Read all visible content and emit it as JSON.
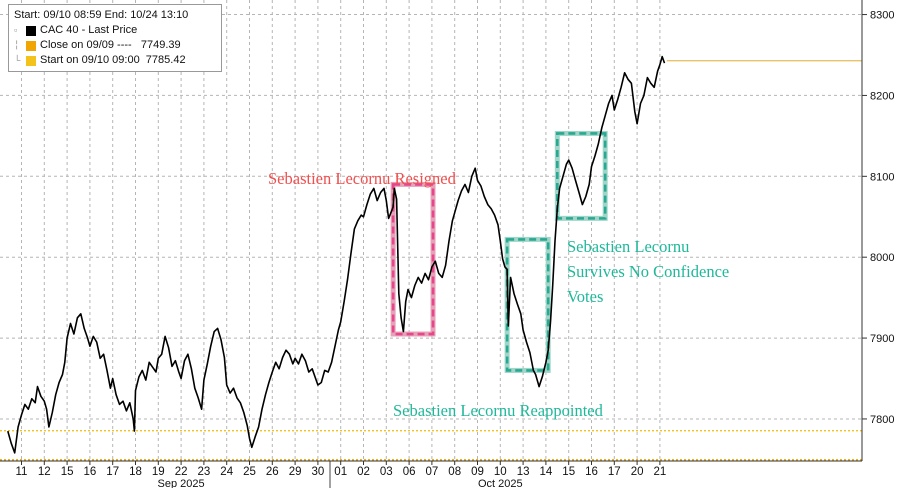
{
  "legend": {
    "header": "Start: 09/10 08:59 End: 10/24 13:10",
    "items": [
      {
        "label": "CAC 40 - Last Price",
        "color": "#000000"
      },
      {
        "label": "Close on 09/09 ----   7749.39",
        "color": "#f0a500"
      },
      {
        "label": "Start on 09/10 09:00  7785.42",
        "color": "#f3c21b"
      }
    ]
  },
  "annotations": {
    "resigned": {
      "text": "Sebastien Lecornu Resigned",
      "color": "#f0504f"
    },
    "reappointed": {
      "text": "Sebastien Lecornu Reappointed",
      "color": "#1fb89a"
    },
    "survives": {
      "lines": [
        "Sebastien Lecornu",
        "Survives No Confidence",
        "Votes"
      ],
      "color": "#1fb89a"
    }
  },
  "chart_data": {
    "type": "line",
    "title": "",
    "xlabel": "",
    "ylabel": "",
    "ylim": [
      7748,
      8318
    ],
    "yticks": [
      7800,
      7900,
      8000,
      8100,
      8200,
      8300
    ],
    "grid": true,
    "x_ticks": [
      "11",
      "12",
      "15",
      "16",
      "17",
      "18",
      "19",
      "22",
      "23",
      "24",
      "25",
      "26",
      "29",
      "30",
      "01",
      "02",
      "03",
      "06",
      "07",
      "08",
      "09",
      "10",
      "13",
      "14",
      "15",
      "16",
      "17",
      "20",
      "21"
    ],
    "x_month_labels": [
      {
        "label": "Sep 2025",
        "at_tick": 7
      },
      {
        "label": "Oct 2025",
        "at_tick": 21
      }
    ],
    "series": [
      {
        "name": "CAC 40 - Last Price",
        "color": "#000000",
        "points": [
          [
            -0.6,
            7785
          ],
          [
            -0.45,
            7770
          ],
          [
            -0.3,
            7758
          ],
          [
            -0.15,
            7790
          ],
          [
            0.0,
            7805
          ],
          [
            0.15,
            7818
          ],
          [
            0.3,
            7812
          ],
          [
            0.45,
            7825
          ],
          [
            0.6,
            7820
          ],
          [
            0.7,
            7840
          ],
          [
            0.85,
            7828
          ],
          [
            1.0,
            7822
          ],
          [
            1.1,
            7812
          ],
          [
            1.2,
            7790
          ],
          [
            1.35,
            7808
          ],
          [
            1.5,
            7830
          ],
          [
            1.65,
            7845
          ],
          [
            1.8,
            7855
          ],
          [
            1.9,
            7870
          ],
          [
            2.0,
            7900
          ],
          [
            2.15,
            7918
          ],
          [
            2.3,
            7905
          ],
          [
            2.45,
            7925
          ],
          [
            2.6,
            7930
          ],
          [
            2.75,
            7912
          ],
          [
            2.9,
            7900
          ],
          [
            3.0,
            7890
          ],
          [
            3.15,
            7902
          ],
          [
            3.3,
            7895
          ],
          [
            3.45,
            7875
          ],
          [
            3.6,
            7880
          ],
          [
            3.75,
            7860
          ],
          [
            3.9,
            7838
          ],
          [
            4.0,
            7850
          ],
          [
            4.15,
            7830
          ],
          [
            4.3,
            7818
          ],
          [
            4.45,
            7822
          ],
          [
            4.6,
            7810
          ],
          [
            4.75,
            7820
          ],
          [
            4.9,
            7800
          ],
          [
            4.95,
            7785
          ],
          [
            5.0,
            7835
          ],
          [
            5.15,
            7852
          ],
          [
            5.3,
            7860
          ],
          [
            5.45,
            7848
          ],
          [
            5.6,
            7870
          ],
          [
            5.75,
            7864
          ],
          [
            5.9,
            7858
          ],
          [
            6.0,
            7875
          ],
          [
            6.15,
            7880
          ],
          [
            6.3,
            7902
          ],
          [
            6.45,
            7888
          ],
          [
            6.6,
            7865
          ],
          [
            6.75,
            7872
          ],
          [
            6.9,
            7858
          ],
          [
            7.0,
            7850
          ],
          [
            7.15,
            7872
          ],
          [
            7.3,
            7880
          ],
          [
            7.45,
            7862
          ],
          [
            7.6,
            7838
          ],
          [
            7.75,
            7826
          ],
          [
            7.9,
            7812
          ],
          [
            8.0,
            7848
          ],
          [
            8.15,
            7868
          ],
          [
            8.3,
            7890
          ],
          [
            8.45,
            7908
          ],
          [
            8.6,
            7912
          ],
          [
            8.75,
            7898
          ],
          [
            8.9,
            7876
          ],
          [
            9.0,
            7842
          ],
          [
            9.15,
            7832
          ],
          [
            9.3,
            7838
          ],
          [
            9.45,
            7826
          ],
          [
            9.6,
            7820
          ],
          [
            9.75,
            7808
          ],
          [
            9.9,
            7792
          ],
          [
            10.0,
            7776
          ],
          [
            10.1,
            7765
          ],
          [
            10.25,
            7778
          ],
          [
            10.4,
            7790
          ],
          [
            10.55,
            7812
          ],
          [
            10.7,
            7830
          ],
          [
            10.85,
            7845
          ],
          [
            11.0,
            7858
          ],
          [
            11.15,
            7870
          ],
          [
            11.3,
            7862
          ],
          [
            11.45,
            7876
          ],
          [
            11.6,
            7885
          ],
          [
            11.75,
            7880
          ],
          [
            11.9,
            7868
          ],
          [
            12.0,
            7875
          ],
          [
            12.15,
            7868
          ],
          [
            12.3,
            7880
          ],
          [
            12.45,
            7872
          ],
          [
            12.6,
            7858
          ],
          [
            12.75,
            7862
          ],
          [
            12.9,
            7850
          ],
          [
            13.0,
            7842
          ],
          [
            13.15,
            7845
          ],
          [
            13.3,
            7860
          ],
          [
            13.45,
            7858
          ],
          [
            13.6,
            7870
          ],
          [
            13.75,
            7890
          ],
          [
            13.9,
            7910
          ],
          [
            14.0,
            7920
          ],
          [
            14.15,
            7945
          ],
          [
            14.3,
            7972
          ],
          [
            14.45,
            8005
          ],
          [
            14.6,
            8035
          ],
          [
            14.75,
            8045
          ],
          [
            14.9,
            8052
          ],
          [
            15.0,
            8050
          ],
          [
            15.15,
            8065
          ],
          [
            15.3,
            8078
          ],
          [
            15.45,
            8085
          ],
          [
            15.6,
            8070
          ],
          [
            15.75,
            8080
          ],
          [
            15.9,
            8085
          ],
          [
            16.0,
            8070
          ],
          [
            16.1,
            8048
          ],
          [
            16.2,
            8055
          ],
          [
            16.3,
            8062
          ],
          [
            16.35,
            8085
          ],
          [
            16.45,
            8072
          ],
          [
            16.55,
            7955
          ],
          [
            16.65,
            7925
          ],
          [
            16.75,
            7908
          ],
          [
            16.85,
            7945
          ],
          [
            16.95,
            7960
          ],
          [
            17.1,
            7950
          ],
          [
            17.25,
            7965
          ],
          [
            17.4,
            7975
          ],
          [
            17.55,
            7968
          ],
          [
            17.7,
            7980
          ],
          [
            17.85,
            7972
          ],
          [
            18.0,
            7988
          ],
          [
            18.15,
            7995
          ],
          [
            18.3,
            7980
          ],
          [
            18.45,
            7975
          ],
          [
            18.6,
            7990
          ],
          [
            18.75,
            8020
          ],
          [
            18.9,
            8045
          ],
          [
            19.0,
            8055
          ],
          [
            19.15,
            8070
          ],
          [
            19.3,
            8082
          ],
          [
            19.45,
            8090
          ],
          [
            19.6,
            8080
          ],
          [
            19.75,
            8100
          ],
          [
            19.9,
            8110
          ],
          [
            20.0,
            8095
          ],
          [
            20.15,
            8088
          ],
          [
            20.3,
            8075
          ],
          [
            20.45,
            8065
          ],
          [
            20.6,
            8060
          ],
          [
            20.75,
            8052
          ],
          [
            20.9,
            8040
          ],
          [
            21.0,
            8020
          ],
          [
            21.1,
            7998
          ],
          [
            21.2,
            7988
          ],
          [
            21.3,
            7985
          ],
          [
            21.35,
            7915
          ],
          [
            21.45,
            7975
          ],
          [
            21.6,
            7955
          ],
          [
            21.75,
            7942
          ],
          [
            21.9,
            7930
          ],
          [
            22.0,
            7910
          ],
          [
            22.15,
            7895
          ],
          [
            22.3,
            7882
          ],
          [
            22.45,
            7860
          ],
          [
            22.55,
            7855
          ],
          [
            22.7,
            7840
          ],
          [
            22.85,
            7853
          ],
          [
            23.0,
            7870
          ],
          [
            23.1,
            7885
          ],
          [
            23.2,
            7920
          ],
          [
            23.3,
            7965
          ],
          [
            23.4,
            8020
          ],
          [
            23.5,
            8060
          ],
          [
            23.6,
            8085
          ],
          [
            23.75,
            8100
          ],
          [
            23.9,
            8115
          ],
          [
            24.0,
            8120
          ],
          [
            24.15,
            8110
          ],
          [
            24.3,
            8095
          ],
          [
            24.45,
            8080
          ],
          [
            24.6,
            8065
          ],
          [
            24.75,
            8075
          ],
          [
            24.9,
            8090
          ],
          [
            25.0,
            8112
          ],
          [
            25.15,
            8125
          ],
          [
            25.3,
            8140
          ],
          [
            25.45,
            8160
          ],
          [
            25.6,
            8175
          ],
          [
            25.75,
            8190
          ],
          [
            25.9,
            8200
          ],
          [
            26.0,
            8182
          ],
          [
            26.15,
            8195
          ],
          [
            26.3,
            8210
          ],
          [
            26.45,
            8228
          ],
          [
            26.6,
            8220
          ],
          [
            26.75,
            8215
          ],
          [
            26.9,
            8180
          ],
          [
            27.0,
            8165
          ],
          [
            27.15,
            8190
          ],
          [
            27.3,
            8200
          ],
          [
            27.45,
            8222
          ],
          [
            27.6,
            8215
          ],
          [
            27.75,
            8210
          ],
          [
            27.9,
            8230
          ],
          [
            28.0,
            8238
          ],
          [
            28.1,
            8248
          ],
          [
            28.2,
            8240
          ]
        ]
      },
      {
        "name": "Close on 09/09",
        "color": "#f0a500",
        "value": 7749.39
      },
      {
        "name": "Start on 09/10",
        "color": "#f3c21b",
        "value": 7785.42
      },
      {
        "name": "Last price line",
        "color": "#e8c36a",
        "value": 8243,
        "from_x": 28.3
      }
    ]
  }
}
